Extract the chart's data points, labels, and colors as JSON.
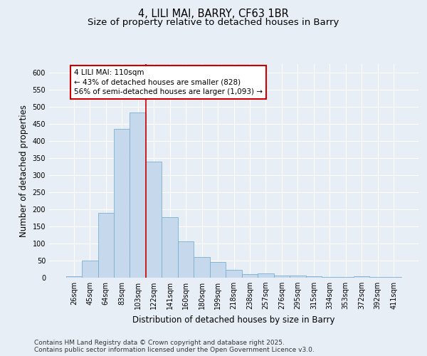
{
  "title_line1": "4, LILI MAI, BARRY, CF63 1BR",
  "title_line2": "Size of property relative to detached houses in Barry",
  "xlabel": "Distribution of detached houses by size in Barry",
  "ylabel": "Number of detached properties",
  "categories": [
    "26sqm",
    "45sqm",
    "64sqm",
    "83sqm",
    "103sqm",
    "122sqm",
    "141sqm",
    "160sqm",
    "180sqm",
    "199sqm",
    "218sqm",
    "238sqm",
    "257sqm",
    "276sqm",
    "295sqm",
    "315sqm",
    "334sqm",
    "353sqm",
    "372sqm",
    "392sqm",
    "411sqm"
  ],
  "values": [
    5,
    50,
    190,
    435,
    483,
    340,
    178,
    107,
    60,
    45,
    23,
    11,
    12,
    7,
    7,
    5,
    3,
    2,
    4,
    2,
    2
  ],
  "bar_color": "#c5d8ec",
  "bar_edge_color": "#7aafd4",
  "vline_x_pos": 4.5,
  "vline_color": "#cc0000",
  "annotation_line1": "4 LILI MAI: 110sqm",
  "annotation_line2": "← 43% of detached houses are smaller (828)",
  "annotation_line3": "56% of semi-detached houses are larger (1,093) →",
  "annotation_box_color": "#ffffff",
  "annotation_box_edge_color": "#cc0000",
  "ylim_max": 625,
  "yticks": [
    0,
    50,
    100,
    150,
    200,
    250,
    300,
    350,
    400,
    450,
    500,
    550,
    600
  ],
  "footer_text": "Contains HM Land Registry data © Crown copyright and database right 2025.\nContains public sector information licensed under the Open Government Licence v3.0.",
  "bg_color": "#e8eef5",
  "grid_color": "#ffffff",
  "title_fontsize": 10.5,
  "subtitle_fontsize": 9.5,
  "tick_fontsize": 7,
  "label_fontsize": 8.5,
  "annotation_fontsize": 7.5,
  "footer_fontsize": 6.5
}
